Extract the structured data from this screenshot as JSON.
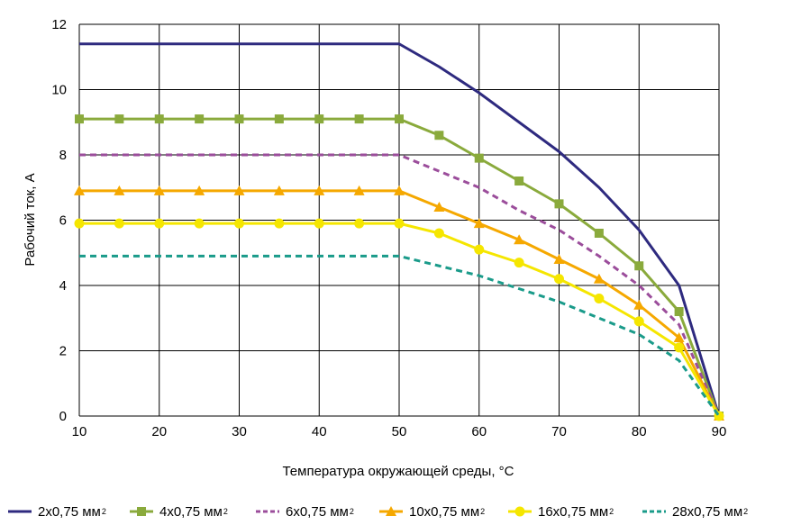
{
  "chart_data": {
    "type": "line",
    "xlabel": "Температура окружающей среды, °C",
    "ylabel": "Рабочий ток, А",
    "xlim": [
      10,
      90
    ],
    "ylim": [
      0,
      12
    ],
    "x_ticks": [
      "10",
      "20",
      "30",
      "40",
      "50",
      "60",
      "70",
      "80",
      "90"
    ],
    "y_ticks": [
      "0",
      "2",
      "4",
      "6",
      "8",
      "10",
      "12"
    ],
    "grid": true,
    "legend_position": "bottom",
    "x": [
      10,
      15,
      20,
      25,
      30,
      35,
      40,
      45,
      50,
      55,
      60,
      65,
      70,
      75,
      80,
      85,
      90
    ],
    "series": [
      {
        "name": "2x0,75 мм",
        "unit_sup": "2",
        "color": "#2e2a7f",
        "style": "solid",
        "marker": "none",
        "values": [
          11.4,
          11.4,
          11.4,
          11.4,
          11.4,
          11.4,
          11.4,
          11.4,
          11.4,
          10.7,
          9.9,
          9.0,
          8.1,
          7.0,
          5.7,
          4.0,
          0
        ]
      },
      {
        "name": "4x0,75 мм",
        "unit_sup": "2",
        "color": "#8aaa3c",
        "style": "solid",
        "marker": "square",
        "values": [
          9.1,
          9.1,
          9.1,
          9.1,
          9.1,
          9.1,
          9.1,
          9.1,
          9.1,
          8.6,
          7.9,
          7.2,
          6.5,
          5.6,
          4.6,
          3.2,
          0
        ]
      },
      {
        "name": "6x0,75 мм",
        "unit_sup": "2",
        "color": "#9b4d9b",
        "style": "dashed",
        "marker": "none",
        "values": [
          8.0,
          8.0,
          8.0,
          8.0,
          8.0,
          8.0,
          8.0,
          8.0,
          8.0,
          7.5,
          7.0,
          6.3,
          5.7,
          4.9,
          4.0,
          2.8,
          0
        ]
      },
      {
        "name": "10x0,75 мм",
        "unit_sup": "2",
        "color": "#f5a800",
        "style": "solid",
        "marker": "triangle",
        "values": [
          6.9,
          6.9,
          6.9,
          6.9,
          6.9,
          6.9,
          6.9,
          6.9,
          6.9,
          6.4,
          5.9,
          5.4,
          4.8,
          4.2,
          3.4,
          2.4,
          0
        ]
      },
      {
        "name": "16x0,75 мм",
        "unit_sup": "2",
        "color": "#f5e600",
        "style": "solid",
        "marker": "circle",
        "values": [
          5.9,
          5.9,
          5.9,
          5.9,
          5.9,
          5.9,
          5.9,
          5.9,
          5.9,
          5.6,
          5.1,
          4.7,
          4.2,
          3.6,
          2.9,
          2.1,
          0
        ]
      },
      {
        "name": "28x0,75 мм",
        "unit_sup": "2",
        "color": "#1a9b8a",
        "style": "dashed",
        "marker": "none",
        "values": [
          4.9,
          4.9,
          4.9,
          4.9,
          4.9,
          4.9,
          4.9,
          4.9,
          4.9,
          4.6,
          4.3,
          3.9,
          3.5,
          3.0,
          2.5,
          1.7,
          0
        ]
      }
    ]
  }
}
